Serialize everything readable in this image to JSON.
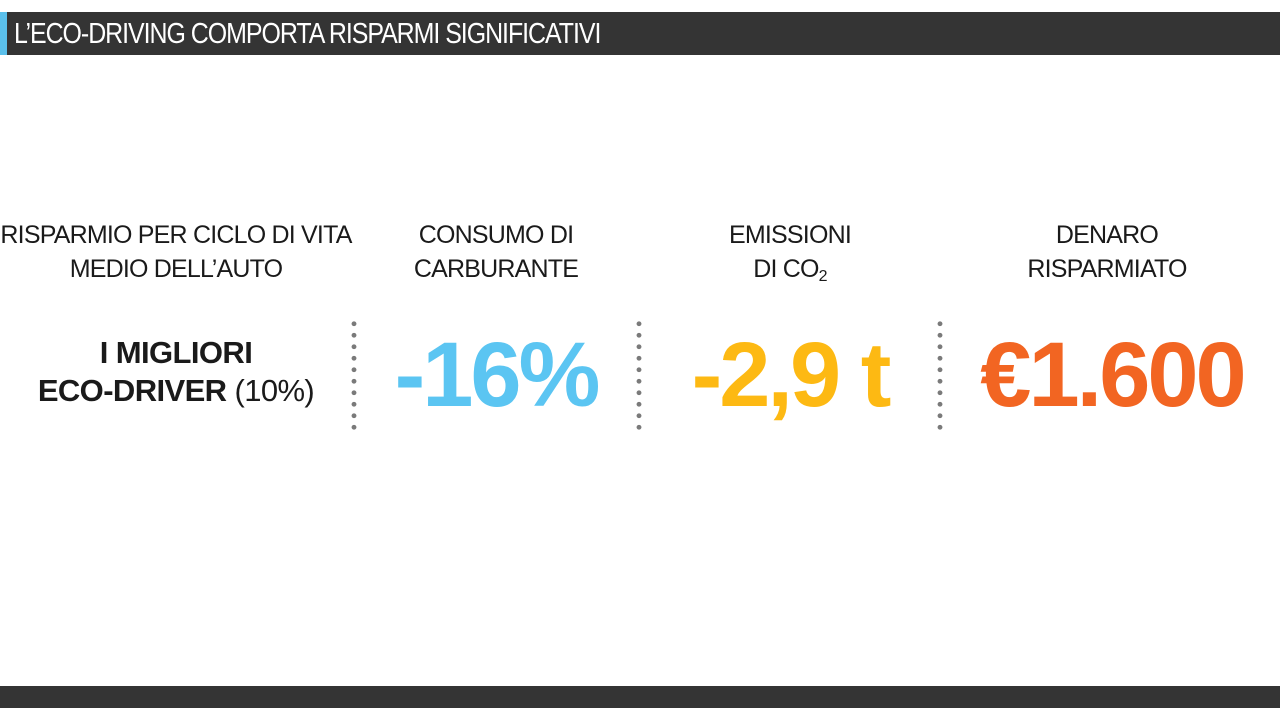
{
  "slide": {
    "title": "L’ECO-DRIVING COMPORTA RISPARMI SIGNIFICATIVI"
  },
  "headers": {
    "col1_line1": "RISPARMIO PER CICLO DI VITA",
    "col1_line2": "MEDIO DELL’AUTO",
    "col2_line1": "CONSUMO DI",
    "col2_line2": "CARBURANTE",
    "col3_line1": "EMISSIONI",
    "col3_line2_prefix": "DI CO",
    "col3_line2_sub": "2",
    "col4_line1": "DENARO",
    "col4_line2": "RISPARMIATO"
  },
  "best_drivers": {
    "line1": "I MIGLIORI",
    "line2_bold": "ECO-DRIVER",
    "line2_pct": "(10%)"
  },
  "values": {
    "fuel": "-16%",
    "emissions": "-2,9 t",
    "money": "€1.600"
  },
  "colors": {
    "fuel": "#5bc5f2",
    "emissions": "#fdb913",
    "money": "#f26522",
    "bar": "#343434",
    "accent": "#5bc0eb"
  }
}
